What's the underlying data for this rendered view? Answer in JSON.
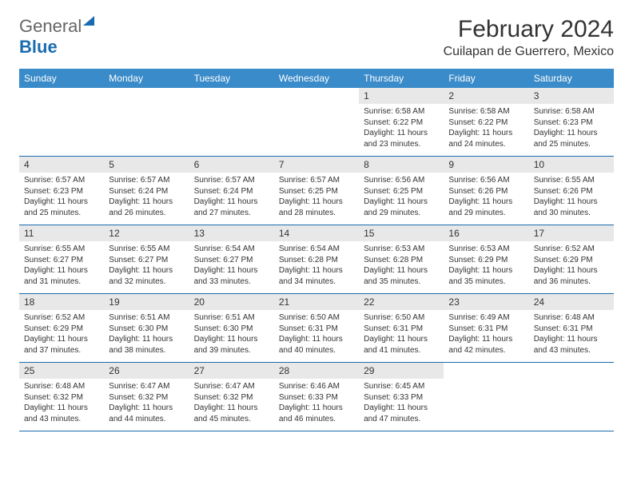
{
  "logo": {
    "general": "General",
    "blue": "Blue"
  },
  "title": "February 2024",
  "location": "Cuilapan de Guerrero, Mexico",
  "day_names": [
    "Sunday",
    "Monday",
    "Tuesday",
    "Wednesday",
    "Thursday",
    "Friday",
    "Saturday"
  ],
  "colors": {
    "header_bg": "#3a8bc9",
    "accent": "#1a6cb0",
    "daynum_bg": "#e8e8e8",
    "text": "#333333",
    "white": "#ffffff"
  },
  "weeks": [
    [
      null,
      null,
      null,
      null,
      {
        "n": "1",
        "sr": "6:58 AM",
        "ss": "6:22 PM",
        "dl": "11 hours and 23 minutes."
      },
      {
        "n": "2",
        "sr": "6:58 AM",
        "ss": "6:22 PM",
        "dl": "11 hours and 24 minutes."
      },
      {
        "n": "3",
        "sr": "6:58 AM",
        "ss": "6:23 PM",
        "dl": "11 hours and 25 minutes."
      }
    ],
    [
      {
        "n": "4",
        "sr": "6:57 AM",
        "ss": "6:23 PM",
        "dl": "11 hours and 25 minutes."
      },
      {
        "n": "5",
        "sr": "6:57 AM",
        "ss": "6:24 PM",
        "dl": "11 hours and 26 minutes."
      },
      {
        "n": "6",
        "sr": "6:57 AM",
        "ss": "6:24 PM",
        "dl": "11 hours and 27 minutes."
      },
      {
        "n": "7",
        "sr": "6:57 AM",
        "ss": "6:25 PM",
        "dl": "11 hours and 28 minutes."
      },
      {
        "n": "8",
        "sr": "6:56 AM",
        "ss": "6:25 PM",
        "dl": "11 hours and 29 minutes."
      },
      {
        "n": "9",
        "sr": "6:56 AM",
        "ss": "6:26 PM",
        "dl": "11 hours and 29 minutes."
      },
      {
        "n": "10",
        "sr": "6:55 AM",
        "ss": "6:26 PM",
        "dl": "11 hours and 30 minutes."
      }
    ],
    [
      {
        "n": "11",
        "sr": "6:55 AM",
        "ss": "6:27 PM",
        "dl": "11 hours and 31 minutes."
      },
      {
        "n": "12",
        "sr": "6:55 AM",
        "ss": "6:27 PM",
        "dl": "11 hours and 32 minutes."
      },
      {
        "n": "13",
        "sr": "6:54 AM",
        "ss": "6:27 PM",
        "dl": "11 hours and 33 minutes."
      },
      {
        "n": "14",
        "sr": "6:54 AM",
        "ss": "6:28 PM",
        "dl": "11 hours and 34 minutes."
      },
      {
        "n": "15",
        "sr": "6:53 AM",
        "ss": "6:28 PM",
        "dl": "11 hours and 35 minutes."
      },
      {
        "n": "16",
        "sr": "6:53 AM",
        "ss": "6:29 PM",
        "dl": "11 hours and 35 minutes."
      },
      {
        "n": "17",
        "sr": "6:52 AM",
        "ss": "6:29 PM",
        "dl": "11 hours and 36 minutes."
      }
    ],
    [
      {
        "n": "18",
        "sr": "6:52 AM",
        "ss": "6:29 PM",
        "dl": "11 hours and 37 minutes."
      },
      {
        "n": "19",
        "sr": "6:51 AM",
        "ss": "6:30 PM",
        "dl": "11 hours and 38 minutes."
      },
      {
        "n": "20",
        "sr": "6:51 AM",
        "ss": "6:30 PM",
        "dl": "11 hours and 39 minutes."
      },
      {
        "n": "21",
        "sr": "6:50 AM",
        "ss": "6:31 PM",
        "dl": "11 hours and 40 minutes."
      },
      {
        "n": "22",
        "sr": "6:50 AM",
        "ss": "6:31 PM",
        "dl": "11 hours and 41 minutes."
      },
      {
        "n": "23",
        "sr": "6:49 AM",
        "ss": "6:31 PM",
        "dl": "11 hours and 42 minutes."
      },
      {
        "n": "24",
        "sr": "6:48 AM",
        "ss": "6:31 PM",
        "dl": "11 hours and 43 minutes."
      }
    ],
    [
      {
        "n": "25",
        "sr": "6:48 AM",
        "ss": "6:32 PM",
        "dl": "11 hours and 43 minutes."
      },
      {
        "n": "26",
        "sr": "6:47 AM",
        "ss": "6:32 PM",
        "dl": "11 hours and 44 minutes."
      },
      {
        "n": "27",
        "sr": "6:47 AM",
        "ss": "6:32 PM",
        "dl": "11 hours and 45 minutes."
      },
      {
        "n": "28",
        "sr": "6:46 AM",
        "ss": "6:33 PM",
        "dl": "11 hours and 46 minutes."
      },
      {
        "n": "29",
        "sr": "6:45 AM",
        "ss": "6:33 PM",
        "dl": "11 hours and 47 minutes."
      },
      null,
      null
    ]
  ],
  "labels": {
    "sunrise": "Sunrise: ",
    "sunset": "Sunset: ",
    "daylight": "Daylight: "
  }
}
